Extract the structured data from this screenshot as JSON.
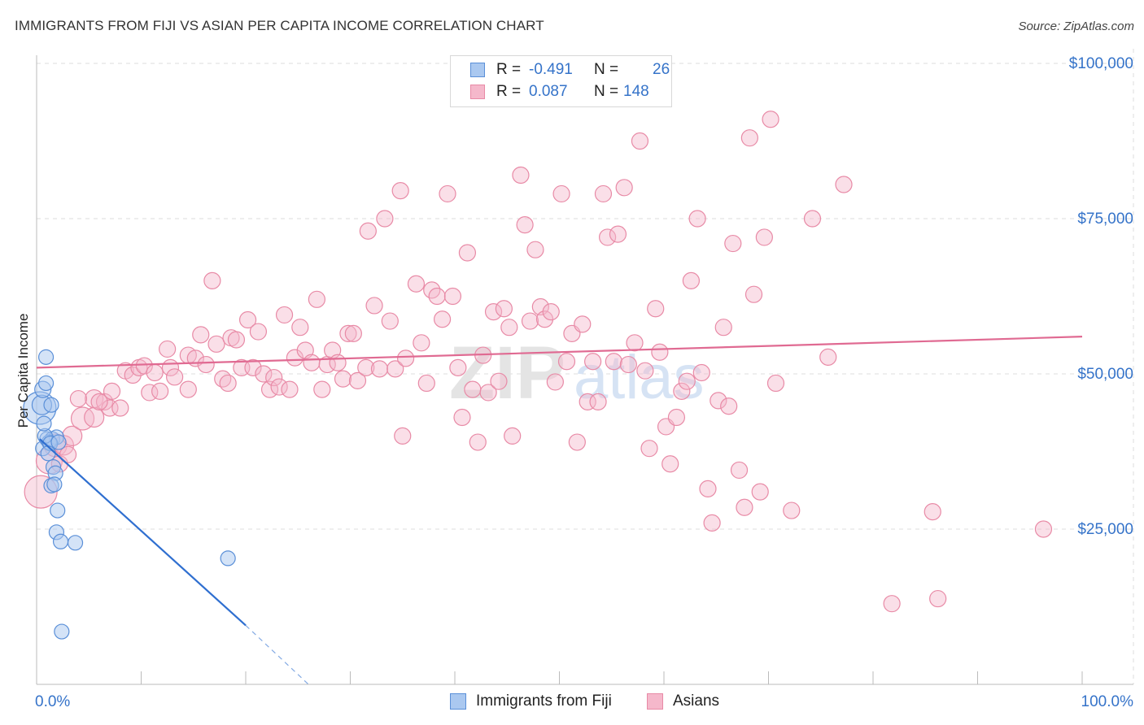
{
  "title": "IMMIGRANTS FROM FIJI VS ASIAN PER CAPITA INCOME CORRELATION CHART",
  "source": "Source: ZipAtlas.com",
  "watermark": {
    "zip": "ZIP",
    "atlas": "atlas"
  },
  "legend": {
    "fiji": {
      "r_label": "R =",
      "r_value": "-0.491",
      "n_label": "N =",
      "n_value": "26"
    },
    "asians": {
      "r_label": "R =",
      "r_value": "0.087",
      "n_label": "N =",
      "n_value": "148"
    }
  },
  "bottom_legend": {
    "fiji": "Immigrants from Fiji",
    "asians": "Asians"
  },
  "colors": {
    "fiji_fill": "#aac8f0",
    "fiji_stroke": "#5a8fd8",
    "fiji_line": "#2f6fd0",
    "asian_fill": "#f5b8cb",
    "asian_stroke": "#e88aa6",
    "asian_line": "#e06a92",
    "axis_label": "#3573c9",
    "grid": "#dddddd"
  },
  "chart_data": {
    "type": "scatter",
    "title": "IMMIGRANTS FROM FIJI VS ASIAN PER CAPITA INCOME CORRELATION CHART",
    "xlabel": "",
    "ylabel": "Per Capita Income",
    "xlim": [
      0,
      100
    ],
    "ylim": [
      0,
      100000
    ],
    "x_tick_labels": [
      "0.0%",
      "100.0%"
    ],
    "y_ticks": [
      25000,
      50000,
      75000,
      100000
    ],
    "y_tick_labels": [
      "$25,000",
      "$50,000",
      "$75,000",
      "$100,000"
    ],
    "series": [
      {
        "name": "Immigrants from Fiji",
        "trend": {
          "x": [
            0.3,
            20
          ],
          "y": [
            39500,
            9500
          ],
          "dashed_to": [
            26,
            0
          ]
        },
        "points": [
          [
            0.3,
            44500,
            20
          ],
          [
            0.5,
            45000,
            12
          ],
          [
            0.6,
            47500,
            10
          ],
          [
            0.9,
            48500,
            9
          ],
          [
            1.4,
            45000,
            9
          ],
          [
            0.9,
            52700,
            9
          ],
          [
            0.6,
            38000,
            9
          ],
          [
            1.0,
            39500,
            9
          ],
          [
            1.5,
            39500,
            9
          ],
          [
            1.9,
            39800,
            9
          ],
          [
            1.2,
            39000,
            9
          ],
          [
            1.6,
            35000,
            9
          ],
          [
            1.8,
            34000,
            9
          ],
          [
            1.4,
            32000,
            9
          ],
          [
            1.7,
            32200,
            9
          ],
          [
            2.0,
            28000,
            9
          ],
          [
            1.9,
            24500,
            9
          ],
          [
            2.3,
            23000,
            9
          ],
          [
            3.7,
            22800,
            9
          ],
          [
            18.3,
            20300,
            9
          ],
          [
            2.4,
            8500,
            9
          ],
          [
            0.8,
            40000,
            9
          ],
          [
            1.3,
            38800,
            9
          ],
          [
            1.1,
            37200,
            9
          ],
          [
            0.7,
            42000,
            9
          ],
          [
            2.1,
            39000,
            9
          ]
        ]
      },
      {
        "name": "Asians",
        "trend": {
          "x": [
            0,
            100
          ],
          "y": [
            51000,
            56000
          ]
        },
        "points": [
          [
            0.4,
            31000,
            20
          ],
          [
            1.2,
            36000,
            16
          ],
          [
            1.8,
            38500,
            14
          ],
          [
            2.6,
            38500,
            12
          ],
          [
            3.4,
            40000,
            12
          ],
          [
            4.4,
            42800,
            14
          ],
          [
            5.5,
            43000,
            12
          ],
          [
            5.5,
            46000,
            11
          ],
          [
            6.5,
            45500,
            10
          ],
          [
            7.0,
            44500,
            10
          ],
          [
            7.2,
            47200,
            10
          ],
          [
            8.5,
            50500,
            10
          ],
          [
            9.2,
            49800,
            10
          ],
          [
            9.8,
            51000,
            10
          ],
          [
            10.3,
            51300,
            10
          ],
          [
            10.8,
            47000,
            10
          ],
          [
            11.3,
            50200,
            10
          ],
          [
            11.8,
            47200,
            10
          ],
          [
            12.5,
            54000,
            10
          ],
          [
            12.8,
            51000,
            10
          ],
          [
            13.2,
            49500,
            10
          ],
          [
            14.5,
            47500,
            10
          ],
          [
            14.5,
            53000,
            10
          ],
          [
            15.2,
            52500,
            10
          ],
          [
            15.7,
            56300,
            10
          ],
          [
            16.2,
            51500,
            10
          ],
          [
            16.8,
            65000,
            10
          ],
          [
            17.2,
            54800,
            10
          ],
          [
            17.8,
            49200,
            10
          ],
          [
            18.3,
            48500,
            10
          ],
          [
            18.6,
            55800,
            10
          ],
          [
            19.1,
            55500,
            10
          ],
          [
            19.6,
            51000,
            10
          ],
          [
            20.2,
            58700,
            10
          ],
          [
            20.7,
            51000,
            10
          ],
          [
            21.2,
            56800,
            10
          ],
          [
            21.7,
            50000,
            10
          ],
          [
            22.3,
            47500,
            10
          ],
          [
            22.7,
            49400,
            10
          ],
          [
            23.2,
            47900,
            10
          ],
          [
            23.7,
            59500,
            10
          ],
          [
            24.2,
            47500,
            10
          ],
          [
            24.7,
            52600,
            10
          ],
          [
            25.2,
            57500,
            10
          ],
          [
            25.7,
            53800,
            10
          ],
          [
            26.3,
            51800,
            10
          ],
          [
            26.8,
            62000,
            10
          ],
          [
            27.3,
            47500,
            10
          ],
          [
            27.8,
            51500,
            10
          ],
          [
            28.3,
            53800,
            10
          ],
          [
            28.8,
            51800,
            10
          ],
          [
            29.3,
            49200,
            10
          ],
          [
            29.8,
            56500,
            10
          ],
          [
            30.3,
            56500,
            10
          ],
          [
            30.7,
            48900,
            10
          ],
          [
            31.7,
            73000,
            10
          ],
          [
            31.5,
            51000,
            10
          ],
          [
            32.3,
            61000,
            10
          ],
          [
            32.8,
            50800,
            10
          ],
          [
            33.3,
            75000,
            10
          ],
          [
            33.8,
            58500,
            10
          ],
          [
            34.3,
            50800,
            10
          ],
          [
            34.8,
            79500,
            10
          ],
          [
            35.3,
            52500,
            10
          ],
          [
            35.0,
            40000,
            10
          ],
          [
            36.3,
            64500,
            10
          ],
          [
            36.8,
            55000,
            10
          ],
          [
            37.3,
            48500,
            10
          ],
          [
            37.8,
            63500,
            10
          ],
          [
            38.3,
            62500,
            10
          ],
          [
            38.8,
            58800,
            10
          ],
          [
            39.3,
            79000,
            10
          ],
          [
            39.8,
            62500,
            10
          ],
          [
            40.3,
            51000,
            10
          ],
          [
            40.7,
            43000,
            10
          ],
          [
            41.2,
            69500,
            10
          ],
          [
            41.7,
            47500,
            10
          ],
          [
            42.2,
            39000,
            10
          ],
          [
            42.7,
            53000,
            10
          ],
          [
            43.2,
            47000,
            10
          ],
          [
            43.7,
            60000,
            10
          ],
          [
            44.2,
            48800,
            10
          ],
          [
            44.7,
            60500,
            10
          ],
          [
            45.2,
            57500,
            10
          ],
          [
            45.5,
            40000,
            10
          ],
          [
            46.3,
            82000,
            10
          ],
          [
            46.7,
            74000,
            10
          ],
          [
            47.2,
            58500,
            10
          ],
          [
            47.7,
            70000,
            10
          ],
          [
            48.2,
            60800,
            10
          ],
          [
            48.6,
            58800,
            10
          ],
          [
            49.2,
            60000,
            10
          ],
          [
            49.6,
            48700,
            10
          ],
          [
            50.2,
            79000,
            10
          ],
          [
            50.7,
            52000,
            10
          ],
          [
            51.2,
            56500,
            10
          ],
          [
            51.7,
            39000,
            10
          ],
          [
            52.2,
            58000,
            10
          ],
          [
            52.7,
            45500,
            10
          ],
          [
            53.2,
            52000,
            10
          ],
          [
            53.7,
            45500,
            10
          ],
          [
            54.2,
            79000,
            10
          ],
          [
            54.6,
            72000,
            10
          ],
          [
            55.2,
            52000,
            10
          ],
          [
            55.6,
            72500,
            10
          ],
          [
            56.2,
            80000,
            10
          ],
          [
            56.6,
            51500,
            10
          ],
          [
            57.2,
            55000,
            10
          ],
          [
            57.7,
            87500,
            10
          ],
          [
            58.2,
            50500,
            10
          ],
          [
            58.6,
            38000,
            10
          ],
          [
            59.2,
            60500,
            10
          ],
          [
            59.6,
            53500,
            10
          ],
          [
            60.2,
            41500,
            10
          ],
          [
            60.6,
            35500,
            10
          ],
          [
            61.2,
            43000,
            10
          ],
          [
            61.7,
            47200,
            10
          ],
          [
            62.2,
            48800,
            10
          ],
          [
            62.6,
            65000,
            10
          ],
          [
            63.2,
            75000,
            10
          ],
          [
            63.6,
            50200,
            10
          ],
          [
            64.2,
            31500,
            10
          ],
          [
            64.6,
            26000,
            10
          ],
          [
            65.2,
            45700,
            10
          ],
          [
            65.7,
            57500,
            10
          ],
          [
            66.2,
            44800,
            10
          ],
          [
            66.6,
            71000,
            10
          ],
          [
            67.2,
            34500,
            10
          ],
          [
            67.7,
            28500,
            10
          ],
          [
            68.2,
            88000,
            10
          ],
          [
            68.6,
            62800,
            10
          ],
          [
            69.2,
            31000,
            10
          ],
          [
            69.6,
            72000,
            10
          ],
          [
            70.2,
            91000,
            10
          ],
          [
            70.7,
            48500,
            10
          ],
          [
            72.2,
            28000,
            10
          ],
          [
            74.2,
            75000,
            10
          ],
          [
            75.7,
            52700,
            10
          ],
          [
            77.2,
            80500,
            10
          ],
          [
            81.8,
            13000,
            10
          ],
          [
            85.7,
            27800,
            10
          ],
          [
            86.2,
            13800,
            10
          ],
          [
            96.3,
            25000,
            10
          ],
          [
            2.2,
            35500,
            10
          ],
          [
            3.0,
            37000,
            10
          ],
          [
            8.0,
            44500,
            10
          ],
          [
            4.0,
            46000,
            10
          ],
          [
            6.0,
            45500,
            10
          ]
        ]
      }
    ]
  }
}
